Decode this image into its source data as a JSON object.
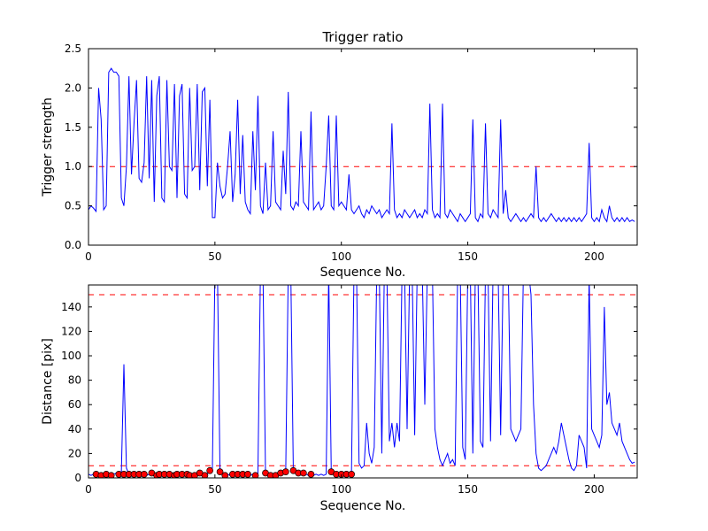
{
  "figure": {
    "background": "#ffffff"
  },
  "chart_data": [
    {
      "type": "line",
      "title": "Trigger ratio",
      "xlabel": "Sequence No.",
      "ylabel": "Trigger strength",
      "xlim": [
        0,
        217
      ],
      "ylim": [
        0,
        2.5
      ],
      "xticks": [
        0,
        50,
        100,
        150,
        200
      ],
      "xtick_labels": [
        "0",
        "50",
        "100",
        "150",
        "200"
      ],
      "yticks": [
        0,
        0.5,
        1.0,
        1.5,
        2.0,
        2.5
      ],
      "ytick_labels": [
        "0.0",
        "0.5",
        "1.0",
        "1.5",
        "2.0",
        "2.5"
      ],
      "grid": false,
      "legend": null,
      "line_color": "#0000ff",
      "hlines": [
        {
          "y": 1.0,
          "color": "#ff0000",
          "style": "dashed"
        }
      ],
      "x_start": 0,
      "x_step": 1,
      "y": [
        0.45,
        0.5,
        0.47,
        0.43,
        2.0,
        1.6,
        0.45,
        0.5,
        2.2,
        2.25,
        2.2,
        2.2,
        2.15,
        0.6,
        0.5,
        1.0,
        2.15,
        0.9,
        1.55,
        2.1,
        0.85,
        0.8,
        1.05,
        2.15,
        0.85,
        2.1,
        0.55,
        1.9,
        2.15,
        0.6,
        0.55,
        2.1,
        1.0,
        0.95,
        2.05,
        0.6,
        1.9,
        2.05,
        0.65,
        0.6,
        2.0,
        0.95,
        1.0,
        2.05,
        0.7,
        1.95,
        2.0,
        0.75,
        1.85,
        0.35,
        0.35,
        1.05,
        0.75,
        0.6,
        0.65,
        1.0,
        1.45,
        0.55,
        0.9,
        1.85,
        0.65,
        1.4,
        0.55,
        0.45,
        0.4,
        1.45,
        0.7,
        1.9,
        0.5,
        0.4,
        1.05,
        0.45,
        0.5,
        1.45,
        0.55,
        0.5,
        0.45,
        1.2,
        0.65,
        1.95,
        0.5,
        0.45,
        0.55,
        0.5,
        1.45,
        0.55,
        0.5,
        0.45,
        1.7,
        0.45,
        0.5,
        0.55,
        0.45,
        0.5,
        1.0,
        1.65,
        0.5,
        0.45,
        1.65,
        0.5,
        0.55,
        0.5,
        0.45,
        0.9,
        0.45,
        0.4,
        0.45,
        0.5,
        0.4,
        0.35,
        0.45,
        0.4,
        0.5,
        0.45,
        0.4,
        0.45,
        0.35,
        0.4,
        0.45,
        0.4,
        1.55,
        0.45,
        0.35,
        0.4,
        0.35,
        0.45,
        0.4,
        0.35,
        0.4,
        0.45,
        0.35,
        0.4,
        0.35,
        0.45,
        0.4,
        1.8,
        0.45,
        0.35,
        0.4,
        0.35,
        1.8,
        0.4,
        0.35,
        0.45,
        0.4,
        0.35,
        0.3,
        0.4,
        0.35,
        0.3,
        0.35,
        0.4,
        1.6,
        0.35,
        0.3,
        0.4,
        0.35,
        1.55,
        0.4,
        0.35,
        0.45,
        0.4,
        0.35,
        1.6,
        0.4,
        0.7,
        0.35,
        0.3,
        0.35,
        0.4,
        0.35,
        0.3,
        0.35,
        0.3,
        0.35,
        0.4,
        0.35,
        1.0,
        0.35,
        0.3,
        0.35,
        0.3,
        0.35,
        0.4,
        0.35,
        0.3,
        0.35,
        0.3,
        0.35,
        0.3,
        0.35,
        0.3,
        0.35,
        0.3,
        0.35,
        0.3,
        0.35,
        0.4,
        1.3,
        0.35,
        0.3,
        0.35,
        0.3,
        0.45,
        0.35,
        0.3,
        0.5,
        0.35,
        0.3,
        0.35,
        0.3,
        0.35,
        0.3,
        0.35,
        0.3,
        0.32,
        0.3
      ]
    },
    {
      "type": "line",
      "title": "",
      "xlabel": "Sequence No.",
      "ylabel": "Distance [pix]",
      "xlim": [
        0,
        217
      ],
      "ylim": [
        0,
        158
      ],
      "xticks": [
        0,
        50,
        100,
        150,
        200
      ],
      "xtick_labels": [
        "0",
        "50",
        "100",
        "150",
        "200"
      ],
      "yticks": [
        0,
        20,
        40,
        60,
        80,
        100,
        120,
        140
      ],
      "ytick_labels": [
        "0",
        "20",
        "40",
        "60",
        "80",
        "100",
        "120",
        "140"
      ],
      "grid": false,
      "legend": null,
      "line_color": "#0000ff",
      "hlines": [
        {
          "y": 150,
          "color": "#ff0000",
          "style": "dashed"
        },
        {
          "y": 10,
          "color": "#ff0000",
          "style": "dashed"
        }
      ],
      "x_start": 0,
      "x_step": 1,
      "y": [
        3,
        2,
        3,
        2,
        3,
        2,
        3,
        4,
        3,
        2,
        3,
        4,
        3,
        5,
        93,
        8,
        3,
        4,
        3,
        4,
        3,
        2,
        3,
        2,
        3,
        4,
        3,
        2,
        3,
        4,
        3,
        2,
        3,
        4,
        2,
        3,
        2,
        3,
        4,
        3,
        2,
        3,
        2,
        3,
        4,
        3,
        2,
        3,
        6,
        8,
        170,
        170,
        5,
        3,
        2,
        3,
        2,
        3,
        2,
        3,
        2,
        3,
        2,
        3,
        2,
        3,
        2,
        3,
        170,
        170,
        4,
        3,
        2,
        3,
        2,
        3,
        4,
        3,
        5,
        170,
        170,
        6,
        5,
        4,
        3,
        4,
        3,
        2,
        3,
        2,
        3,
        2,
        3,
        2,
        3,
        170,
        5,
        4,
        3,
        4,
        3,
        4,
        3,
        4,
        3,
        170,
        170,
        12,
        8,
        10,
        45,
        20,
        12,
        25,
        170,
        170,
        20,
        170,
        170,
        30,
        45,
        25,
        45,
        30,
        170,
        170,
        40,
        170,
        170,
        35,
        170,
        170,
        170,
        60,
        170,
        170,
        170,
        40,
        25,
        15,
        10,
        15,
        20,
        12,
        15,
        10,
        170,
        170,
        25,
        15,
        170,
        170,
        20,
        170,
        170,
        30,
        25,
        170,
        170,
        30,
        170,
        170,
        170,
        35,
        170,
        170,
        170,
        40,
        35,
        30,
        35,
        40,
        170,
        170,
        170,
        150,
        60,
        20,
        8,
        6,
        8,
        10,
        15,
        20,
        25,
        20,
        30,
        45,
        35,
        25,
        15,
        8,
        6,
        10,
        35,
        30,
        25,
        8,
        165,
        40,
        35,
        30,
        25,
        35,
        140,
        60,
        70,
        45,
        40,
        35,
        45,
        30,
        25,
        20,
        15,
        12,
        13
      ],
      "markers": {
        "shape": "circle",
        "color": "#ff0000",
        "edge_color": "#000000",
        "points": [
          [
            3,
            3
          ],
          [
            5,
            2
          ],
          [
            7,
            3
          ],
          [
            9,
            2
          ],
          [
            12,
            3
          ],
          [
            14,
            3
          ],
          [
            16,
            3
          ],
          [
            18,
            3
          ],
          [
            20,
            3
          ],
          [
            22,
            3
          ],
          [
            25,
            4
          ],
          [
            27,
            2
          ],
          [
            28,
            3
          ],
          [
            30,
            3
          ],
          [
            32,
            3
          ],
          [
            34,
            2
          ],
          [
            35,
            3
          ],
          [
            37,
            3
          ],
          [
            39,
            3
          ],
          [
            40,
            2
          ],
          [
            42,
            2
          ],
          [
            44,
            4
          ],
          [
            46,
            2
          ],
          [
            48,
            6
          ],
          [
            52,
            5
          ],
          [
            54,
            2
          ],
          [
            57,
            3
          ],
          [
            59,
            3
          ],
          [
            61,
            3
          ],
          [
            63,
            3
          ],
          [
            66,
            2
          ],
          [
            70,
            4
          ],
          [
            72,
            2
          ],
          [
            74,
            2
          ],
          [
            76,
            4
          ],
          [
            78,
            5
          ],
          [
            81,
            6
          ],
          [
            83,
            4
          ],
          [
            85,
            4
          ],
          [
            88,
            3
          ],
          [
            96,
            5
          ],
          [
            98,
            3
          ],
          [
            100,
            3
          ],
          [
            102,
            3
          ],
          [
            104,
            3
          ]
        ]
      }
    }
  ]
}
